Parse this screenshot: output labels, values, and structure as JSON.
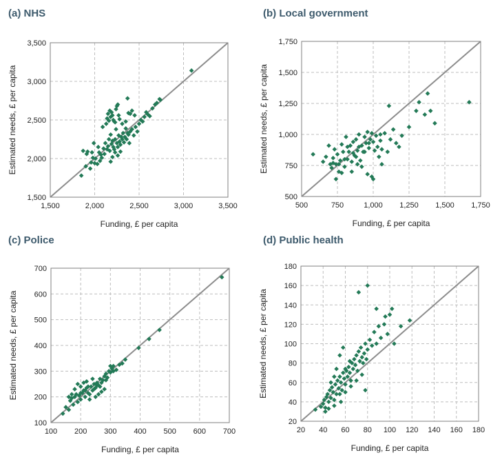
{
  "colors": {
    "marker": "#237a57",
    "title": "#3d5a6c",
    "diagonal": "#8c8c8c"
  },
  "chart_data": [
    {
      "type": "scatter",
      "title": "(a) NHS",
      "xlabel": "Funding, £ per capita",
      "ylabel": "Estimated needs, £ per capita",
      "xlim": [
        1500,
        3500
      ],
      "ylim": [
        1500,
        3500
      ],
      "xticks": [
        1500,
        2000,
        2500,
        3000,
        3500
      ],
      "yticks": [
        1500,
        2000,
        2500,
        3000,
        3500
      ],
      "xtick_labels": [
        "1,500",
        "2,000",
        "2,500",
        "3,000",
        "3,500"
      ],
      "ytick_labels": [
        "1,500",
        "2,000",
        "2,500",
        "3,000",
        "3,500"
      ],
      "diagonal": true,
      "points": [
        [
          1850,
          1780
        ],
        [
          1870,
          2100
        ],
        [
          1900,
          1900
        ],
        [
          1910,
          2060
        ],
        [
          1920,
          2090
        ],
        [
          1950,
          1870
        ],
        [
          1960,
          1950
        ],
        [
          1970,
          2080
        ],
        [
          1980,
          2010
        ],
        [
          2000,
          1940
        ],
        [
          2010,
          2000
        ],
        [
          2030,
          1930
        ],
        [
          2050,
          2080
        ],
        [
          2060,
          1970
        ],
        [
          2080,
          2010
        ],
        [
          2100,
          2130
        ],
        [
          2110,
          2060
        ],
        [
          2120,
          2200
        ],
        [
          2140,
          2120
        ],
        [
          2150,
          2160
        ],
        [
          2160,
          2250
        ],
        [
          2170,
          2100
        ],
        [
          2180,
          2310
        ],
        [
          2190,
          2190
        ],
        [
          2200,
          2230
        ],
        [
          2210,
          2150
        ],
        [
          2220,
          2120
        ],
        [
          2230,
          2250
        ],
        [
          2240,
          2380
        ],
        [
          2250,
          2200
        ],
        [
          2260,
          2150
        ],
        [
          2270,
          2300
        ],
        [
          2280,
          2220
        ],
        [
          2290,
          2180
        ],
        [
          2300,
          2280
        ],
        [
          2310,
          2250
        ],
        [
          2320,
          2330
        ],
        [
          2330,
          2210
        ],
        [
          2340,
          2280
        ],
        [
          2350,
          2390
        ],
        [
          2360,
          2250
        ],
        [
          2370,
          2330
        ],
        [
          2380,
          2310
        ],
        [
          2390,
          2200
        ],
        [
          2400,
          2350
        ],
        [
          2420,
          2380
        ],
        [
          2440,
          2300
        ],
        [
          2460,
          2410
        ],
        [
          2480,
          2350
        ],
        [
          2500,
          2450
        ],
        [
          2520,
          2500
        ],
        [
          2540,
          2480
        ],
        [
          2560,
          2540
        ],
        [
          2580,
          2600
        ],
        [
          2600,
          2570
        ],
        [
          2620,
          2550
        ],
        [
          2650,
          2650
        ],
        [
          2680,
          2700
        ],
        [
          2700,
          2720
        ],
        [
          2730,
          2770
        ],
        [
          2740,
          2760
        ],
        [
          2090,
          2410
        ],
        [
          2130,
          2450
        ],
        [
          2140,
          2520
        ],
        [
          2150,
          2580
        ],
        [
          2160,
          2490
        ],
        [
          2170,
          2620
        ],
        [
          2180,
          2540
        ],
        [
          2190,
          2600
        ],
        [
          2200,
          2560
        ],
        [
          2210,
          2500
        ],
        [
          2220,
          2480
        ],
        [
          2230,
          2470
        ],
        [
          2240,
          2640
        ],
        [
          2250,
          2680
        ],
        [
          2260,
          2700
        ],
        [
          2270,
          2560
        ],
        [
          2280,
          2510
        ],
        [
          2310,
          2450
        ],
        [
          2350,
          2480
        ],
        [
          2370,
          2780
        ],
        [
          2380,
          2590
        ],
        [
          2400,
          2580
        ],
        [
          2420,
          2620
        ],
        [
          2450,
          2560
        ],
        [
          2180,
          1960
        ],
        [
          2200,
          2020
        ],
        [
          2230,
          2080
        ],
        [
          2260,
          2040
        ],
        [
          2290,
          2090
        ],
        [
          2070,
          2050
        ],
        [
          2040,
          2150
        ],
        [
          1990,
          2200
        ],
        [
          3090,
          3140
        ]
      ]
    },
    {
      "type": "scatter",
      "title": "(b) Local government",
      "xlabel": "Funding, £ per capita",
      "ylabel": "Estimated needs, £ per capita",
      "xlim": [
        500,
        1750
      ],
      "ylim": [
        500,
        1750
      ],
      "xticks": [
        500,
        750,
        1000,
        1250,
        1500,
        1750
      ],
      "yticks": [
        500,
        750,
        1000,
        1250,
        1500,
        1750
      ],
      "xtick_labels": [
        "500",
        "750",
        "1,000",
        "1,250",
        "1,500",
        "1,750"
      ],
      "ytick_labels": [
        "500",
        "750",
        "1,000",
        "1,250",
        "1,500",
        "1,750"
      ],
      "diagonal": true,
      "points": [
        [
          580,
          840
        ],
        [
          650,
          780
        ],
        [
          670,
          820
        ],
        [
          690,
          910
        ],
        [
          700,
          760
        ],
        [
          710,
          730
        ],
        [
          720,
          810
        ],
        [
          730,
          880
        ],
        [
          740,
          760
        ],
        [
          750,
          840
        ],
        [
          760,
          700
        ],
        [
          770,
          790
        ],
        [
          780,
          920
        ],
        [
          790,
          860
        ],
        [
          800,
          740
        ],
        [
          810,
          980
        ],
        [
          820,
          800
        ],
        [
          830,
          860
        ],
        [
          840,
          910
        ],
        [
          850,
          780
        ],
        [
          860,
          940
        ],
        [
          870,
          830
        ],
        [
          880,
          960
        ],
        [
          890,
          870
        ],
        [
          900,
          1000
        ],
        [
          910,
          790
        ],
        [
          920,
          910
        ],
        [
          930,
          860
        ],
        [
          940,
          980
        ],
        [
          950,
          930
        ],
        [
          960,
          1020
        ],
        [
          970,
          890
        ],
        [
          980,
          960
        ],
        [
          990,
          1010
        ],
        [
          1000,
          940
        ],
        [
          1010,
          870
        ],
        [
          1020,
          990
        ],
        [
          1030,
          900
        ],
        [
          1040,
          820
        ],
        [
          1050,
          950
        ],
        [
          1060,
          880
        ],
        [
          1080,
          1010
        ],
        [
          1100,
          860
        ],
        [
          1120,
          960
        ],
        [
          1140,
          1040
        ],
        [
          1160,
          930
        ],
        [
          1180,
          900
        ],
        [
          1200,
          990
        ],
        [
          1250,
          1060
        ],
        [
          1300,
          1190
        ],
        [
          1320,
          1260
        ],
        [
          1360,
          1160
        ],
        [
          1380,
          1330
        ],
        [
          1400,
          1190
        ],
        [
          1430,
          1090
        ],
        [
          1110,
          1230
        ],
        [
          720,
          770
        ],
        [
          740,
          640
        ],
        [
          780,
          690
        ],
        [
          850,
          700
        ],
        [
          890,
          760
        ],
        [
          920,
          740
        ],
        [
          960,
          680
        ],
        [
          990,
          660
        ],
        [
          1000,
          640
        ],
        [
          760,
          760
        ],
        [
          800,
          800
        ],
        [
          820,
          900
        ],
        [
          860,
          850
        ],
        [
          880,
          820
        ],
        [
          900,
          900
        ],
        [
          940,
          860
        ],
        [
          970,
          930
        ],
        [
          1050,
          1000
        ],
        [
          1060,
          760
        ],
        [
          1670,
          1260
        ]
      ]
    },
    {
      "type": "scatter",
      "title": "(c) Police",
      "xlabel": "Funding, £ per capita",
      "ylabel": "Estimated needs, £ per capita",
      "xlim": [
        100,
        700
      ],
      "ylim": [
        100,
        700
      ],
      "xticks": [
        100,
        200,
        300,
        400,
        500,
        600,
        700
      ],
      "yticks": [
        100,
        200,
        300,
        400,
        500,
        600,
        700
      ],
      "xtick_labels": [
        "100",
        "200",
        "300",
        "400",
        "500",
        "600",
        "700"
      ],
      "ytick_labels": [
        "100",
        "200",
        "300",
        "400",
        "500",
        "600",
        "700"
      ],
      "diagonal": true,
      "points": [
        [
          140,
          135
        ],
        [
          150,
          160
        ],
        [
          160,
          150
        ],
        [
          165,
          185
        ],
        [
          170,
          195
        ],
        [
          175,
          170
        ],
        [
          180,
          200
        ],
        [
          185,
          210
        ],
        [
          190,
          180
        ],
        [
          195,
          205
        ],
        [
          200,
          190
        ],
        [
          205,
          215
        ],
        [
          210,
          225
        ],
        [
          215,
          200
        ],
        [
          220,
          235
        ],
        [
          225,
          215
        ],
        [
          230,
          210
        ],
        [
          235,
          240
        ],
        [
          240,
          225
        ],
        [
          245,
          250
        ],
        [
          250,
          235
        ],
        [
          255,
          255
        ],
        [
          260,
          245
        ],
        [
          265,
          270
        ],
        [
          270,
          255
        ],
        [
          275,
          265
        ],
        [
          280,
          280
        ],
        [
          285,
          290
        ],
        [
          290,
          275
        ],
        [
          295,
          300
        ],
        [
          300,
          295
        ],
        [
          305,
          310
        ],
        [
          310,
          320
        ],
        [
          320,
          305
        ],
        [
          330,
          325
        ],
        [
          340,
          330
        ],
        [
          350,
          345
        ],
        [
          190,
          250
        ],
        [
          200,
          240
        ],
        [
          210,
          255
        ],
        [
          220,
          260
        ],
        [
          240,
          270
        ],
        [
          230,
          190
        ],
        [
          250,
          200
        ],
        [
          260,
          210
        ],
        [
          270,
          220
        ],
        [
          280,
          230
        ],
        [
          160,
          200
        ],
        [
          170,
          210
        ],
        [
          180,
          230
        ],
        [
          200,
          215
        ],
        [
          215,
          225
        ],
        [
          225,
          240
        ],
        [
          245,
          230
        ],
        [
          255,
          245
        ],
        [
          265,
          240
        ],
        [
          285,
          265
        ],
        [
          300,
          320
        ],
        [
          310,
          300
        ],
        [
          395,
          390
        ],
        [
          430,
          425
        ],
        [
          465,
          460
        ],
        [
          675,
          665
        ]
      ]
    },
    {
      "type": "scatter",
      "title": "(d) Public health",
      "xlabel": "Funding, £ per capita",
      "ylabel": "Estimated needs, £ per capita",
      "xlim": [
        20,
        180
      ],
      "ylim": [
        20,
        180
      ],
      "xticks": [
        20,
        40,
        60,
        80,
        100,
        120,
        140,
        160,
        180
      ],
      "yticks": [
        20,
        40,
        60,
        80,
        100,
        120,
        140,
        160,
        180
      ],
      "xtick_labels": [
        "20",
        "40",
        "60",
        "80",
        "100",
        "120",
        "140",
        "160",
        "180"
      ],
      "ytick_labels": [
        "20",
        "40",
        "60",
        "80",
        "100",
        "120",
        "140",
        "160",
        "180"
      ],
      "diagonal": true,
      "points": [
        [
          33,
          32
        ],
        [
          38,
          35
        ],
        [
          40,
          38
        ],
        [
          41,
          42
        ],
        [
          42,
          34
        ],
        [
          43,
          45
        ],
        [
          44,
          48
        ],
        [
          45,
          40
        ],
        [
          46,
          52
        ],
        [
          47,
          44
        ],
        [
          48,
          55
        ],
        [
          49,
          50
        ],
        [
          50,
          42
        ],
        [
          51,
          58
        ],
        [
          52,
          48
        ],
        [
          53,
          62
        ],
        [
          54,
          54
        ],
        [
          55,
          66
        ],
        [
          56,
          60
        ],
        [
          57,
          52
        ],
        [
          58,
          70
        ],
        [
          59,
          64
        ],
        [
          60,
          58
        ],
        [
          61,
          72
        ],
        [
          62,
          66
        ],
        [
          63,
          76
        ],
        [
          64,
          70
        ],
        [
          65,
          62
        ],
        [
          66,
          80
        ],
        [
          67,
          74
        ],
        [
          68,
          84
        ],
        [
          69,
          78
        ],
        [
          70,
          88
        ],
        [
          71,
          72
        ],
        [
          72,
          92
        ],
        [
          73,
          82
        ],
        [
          74,
          96
        ],
        [
          75,
          86
        ],
        [
          76,
          80
        ],
        [
          77,
          90
        ],
        [
          78,
          100
        ],
        [
          79,
          84
        ],
        [
          80,
          94
        ],
        [
          82,
          104
        ],
        [
          84,
          98
        ],
        [
          86,
          112
        ],
        [
          88,
          100
        ],
        [
          90,
          118
        ],
        [
          92,
          106
        ],
        [
          95,
          120
        ],
        [
          98,
          110
        ],
        [
          100,
          130
        ],
        [
          102,
          136
        ],
        [
          104,
          100
        ],
        [
          110,
          118
        ],
        [
          118,
          124
        ],
        [
          80,
          160
        ],
        [
          72,
          153
        ],
        [
          88,
          136
        ],
        [
          96,
          128
        ],
        [
          47,
          60
        ],
        [
          50,
          66
        ],
        [
          55,
          48
        ],
        [
          60,
          50
        ],
        [
          65,
          56
        ],
        [
          70,
          62
        ],
        [
          75,
          68
        ],
        [
          78,
          52
        ],
        [
          42,
          30
        ],
        [
          45,
          33
        ],
        [
          50,
          36
        ],
        [
          56,
          40
        ],
        [
          60,
          74
        ],
        [
          64,
          82
        ],
        [
          58,
          96
        ],
        [
          55,
          88
        ],
        [
          52,
          74
        ]
      ]
    }
  ]
}
